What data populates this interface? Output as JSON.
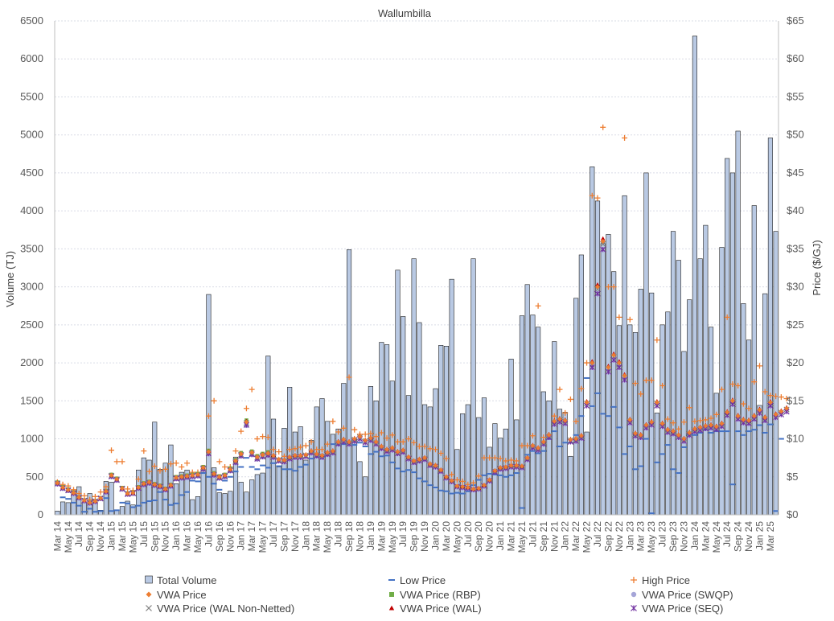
{
  "chart_data": {
    "type": "bar",
    "title": "Wallumbilla",
    "xlabel": "",
    "ylabel": "Volume (TJ)",
    "y2label": "Price ($/GJ)",
    "ylim": [
      0,
      6500
    ],
    "y2lim": [
      0,
      65
    ],
    "y_ticks": [
      "0",
      "500",
      "1000",
      "1500",
      "2000",
      "2500",
      "3000",
      "3500",
      "4000",
      "4500",
      "5000",
      "5500",
      "6000",
      "6500"
    ],
    "y2_ticks": [
      "$0",
      "$5",
      "$10",
      "$15",
      "$20",
      "$25",
      "$30",
      "$35",
      "$40",
      "$45",
      "$50",
      "$55",
      "$60",
      "$65"
    ],
    "grid": true,
    "legend_position": "bottom",
    "x_tick_labels": [
      "Mar 14",
      "May 14",
      "Jul 14",
      "Sep 14",
      "Nov 14",
      "Jan 15",
      "Mar 15",
      "May 15",
      "Jul 15",
      "Sep 15",
      "Nov 15",
      "Jan 16",
      "Mar 16",
      "May 16",
      "Jul 16",
      "Sep 16",
      "Nov 16",
      "Jan 17",
      "Mar 17",
      "May 17",
      "Jul 17",
      "Sep 17",
      "Nov 17",
      "Jan 18",
      "Mar 18",
      "May 18",
      "Jul 18",
      "Sep 18",
      "Nov 18",
      "Jan 19",
      "Mar 19",
      "May 19",
      "Jul 19",
      "Sep 19",
      "Nov 19",
      "Jan 20",
      "Mar 20",
      "May 20",
      "Jul 20",
      "Sep 20",
      "Nov 20",
      "Jan 21",
      "Mar 21",
      "May 21",
      "Jul 21",
      "Sep 21",
      "Nov 21",
      "Jan 22",
      "Mar 22",
      "May 22",
      "Jul 22",
      "Sep 22",
      "Nov 22",
      "Jan 23",
      "Mar 23",
      "May 23",
      "Jul 23",
      "Sep 23",
      "Nov 23",
      "Jan 24",
      "Mar 24",
      "May 24",
      "Jul 24",
      "Sep 24",
      "Nov 24",
      "Jan 25",
      "Mar 25"
    ],
    "x_start": "2014-03",
    "volume": [
      50,
      170,
      160,
      330,
      370,
      160,
      280,
      200,
      60,
      440,
      430,
      60,
      110,
      180,
      130,
      590,
      750,
      720,
      1220,
      600,
      680,
      920,
      410,
      560,
      590,
      200,
      240,
      560,
      2900,
      620,
      290,
      280,
      310,
      760,
      430,
      300,
      460,
      530,
      550,
      2090,
      1260,
      630,
      1140,
      1680,
      1090,
      1160,
      720,
      980,
      1420,
      1530,
      1230,
      1060,
      1130,
      1730,
      3490,
      1000,
      700,
      500,
      1690,
      1500,
      2270,
      2240,
      1760,
      3220,
      2610,
      1570,
      3370,
      2530,
      1450,
      1420,
      1660,
      2230,
      2220,
      3100,
      860,
      1330,
      1450,
      3370,
      1280,
      1540,
      890,
      1200,
      1010,
      1130,
      2050,
      1250,
      2620,
      3030,
      2630,
      2470,
      1620,
      1500,
      2280,
      1390,
      1350,
      770,
      2850,
      3420,
      1090,
      4580,
      4130,
      3570,
      3690,
      3200,
      2490,
      4200,
      2500,
      2400,
      2970,
      4500,
      2920,
      1340,
      2500,
      2670,
      3730,
      3350,
      2150,
      2830,
      6300,
      3370,
      3810,
      2470,
      1600,
      3520,
      4690,
      4500,
      5050,
      2780,
      2300,
      4070,
      1440,
      2910,
      4960,
      3730
    ],
    "series": [
      {
        "name": "Total Volume",
        "type": "bar",
        "color": "#b9c9e3"
      },
      {
        "name": "Low Price",
        "type": "dash",
        "color": "#4472c4"
      },
      {
        "name": "High Price",
        "type": "plus",
        "color": "#ed7d31"
      },
      {
        "name": "VWA Price",
        "type": "diamond",
        "color": "#ed7d31"
      },
      {
        "name": "VWA Price (RBP)",
        "type": "square",
        "color": "#70ad47"
      },
      {
        "name": "VWA Price (SWQP)",
        "type": "circle",
        "color": "#a5a5d8"
      },
      {
        "name": "VWA Price (WAL Non-Netted)",
        "type": "x",
        "color": "#7f7f7f"
      },
      {
        "name": "VWA Price (WAL)",
        "type": "triangle",
        "color": "#c00000"
      },
      {
        "name": "VWA Price (SEQ)",
        "type": "star",
        "color": "#7030a0"
      }
    ],
    "vwa_price": [
      4.2,
      3.6,
      3.3,
      2.9,
      2.3,
      1.9,
      1.6,
      1.8,
      2.2,
      3.1,
      5.2,
      4.7,
      3.5,
      2.8,
      2.9,
      3.6,
      4.1,
      4.3,
      4.0,
      3.8,
      3.4,
      3.9,
      4.9,
      5.0,
      5.1,
      5.2,
      5.3,
      6.2,
      8.3,
      5.4,
      5.0,
      5.2,
      6.0,
      7.1,
      8.0,
      12.2,
      8.2,
      7.6,
      7.9,
      8.1,
      7.8,
      7.3,
      7.2,
      7.6,
      7.8,
      7.8,
      7.9,
      8.4,
      8.0,
      7.8,
      8.2,
      8.4,
      9.6,
      9.9,
      9.6,
      10.0,
      10.3,
      9.8,
      10.1,
      9.6,
      9.0,
      8.6,
      8.8,
      8.3,
      8.5,
      7.6,
      7.1,
      7.3,
      7.5,
      6.7,
      6.5,
      5.9,
      5.0,
      4.5,
      3.8,
      3.7,
      3.6,
      3.4,
      3.5,
      3.9,
      4.6,
      5.8,
      6.2,
      6.3,
      6.5,
      6.5,
      6.4,
      7.5,
      9.1,
      8.8,
      9.6,
      10.5,
      12.3,
      12.6,
      12.4,
      9.9,
      10.0,
      10.4,
      14.8,
      20.0,
      30.0,
      36.0,
      19.4,
      21.0,
      20.0,
      18.3,
      12.5,
      10.7,
      10.5,
      11.8,
      12.2,
      14.8,
      12.0,
      11.2,
      11.0,
      10.5,
      10.0,
      10.8,
      11.3,
      11.5,
      11.7,
      11.8,
      11.6,
      12.0,
      13.5,
      15.0,
      13.0,
      12.5,
      12.4,
      13.0,
      13.8,
      12.8,
      14.8,
      13.2,
      13.6,
      14.0
    ],
    "high_price": [
      4.3,
      4.0,
      3.8,
      3.3,
      2.8,
      2.5,
      2.0,
      2.4,
      3.0,
      3.7,
      8.5,
      7.0,
      7.0,
      3.4,
      3.2,
      4.7,
      8.4,
      5.7,
      6.4,
      5.8,
      6.0,
      6.7,
      6.8,
      6.3,
      6.8,
      5.6,
      5.6,
      6.0,
      13.0,
      15.0,
      7.0,
      6.3,
      6.3,
      8.4,
      11.0,
      14.0,
      16.5,
      10.0,
      10.3,
      10.2,
      8.6,
      8.3,
      7.7,
      8.6,
      8.7,
      8.9,
      9.1,
      9.6,
      8.6,
      8.6,
      9.3,
      12.3,
      10.9,
      11.4,
      18.1,
      11.2,
      10.6,
      10.6,
      10.7,
      10.3,
      10.8,
      10.1,
      10.5,
      9.6,
      9.6,
      10.0,
      9.5,
      9.0,
      9.0,
      8.7,
      8.6,
      8.1,
      7.4,
      5.3,
      4.6,
      4.4,
      4.0,
      4.2,
      5.1,
      7.5,
      7.5,
      7.5,
      7.4,
      7.1,
      7.2,
      7.1,
      9.1,
      9.1,
      10.4,
      27.5,
      10.2,
      10.5,
      13.0,
      16.5,
      13.4,
      15.2,
      12.3,
      16.6,
      20.0,
      42.0,
      41.7,
      51.0,
      30.0,
      30.0,
      26.0,
      49.6,
      25.7,
      17.3,
      15.9,
      17.7,
      17.7,
      23.0,
      17.0,
      12.6,
      12.1,
      11.3,
      12.2,
      14.1,
      12.3,
      12.4,
      12.5,
      12.7,
      13.2,
      16.5,
      26.0,
      17.2,
      17.0,
      14.6,
      14.0,
      17.5,
      19.6,
      16.2,
      15.7,
      15.6,
      15.5,
      15.3
    ],
    "low_price": [
      4.1,
      2.3,
      2.1,
      1.6,
      1.2,
      0.4,
      0.8,
      0.4,
      0.5,
      2.2,
      0.5,
      0.6,
      1.6,
      1.5,
      1.0,
      1.2,
      1.6,
      1.8,
      1.9,
      3.0,
      2.0,
      1.3,
      1.5,
      2.6,
      3.0,
      4.5,
      4.4,
      5.5,
      5.0,
      4.1,
      3.3,
      4.5,
      5.0,
      5.7,
      6.3,
      7.5,
      6.3,
      6.0,
      6.5,
      6.2,
      6.8,
      6.4,
      6.0,
      6.0,
      5.8,
      6.3,
      6.6,
      7.4,
      7.6,
      7.6,
      7.8,
      9.3,
      9.2,
      9.3,
      9.6,
      9.2,
      9.5,
      9.0,
      8.0,
      8.3,
      7.7,
      7.8,
      6.9,
      6.1,
      5.7,
      5.9,
      5.6,
      4.8,
      4.4,
      3.9,
      3.6,
      3.2,
      3.1,
      2.8,
      2.9,
      2.8,
      3.1,
      3.9,
      4.6,
      5.2,
      5.4,
      5.3,
      5.2,
      5.0,
      5.2,
      5.5,
      0.9,
      7.9,
      8.4,
      8.1,
      8.4,
      10.0,
      11.0,
      9.0,
      9.5,
      9.5,
      10.5,
      13.0,
      18.0,
      14.3,
      16.0,
      13.3,
      13.0,
      14.2,
      11.5,
      8.0,
      9.0,
      6.0,
      6.4,
      10.0,
      0.2,
      6.9,
      8.0,
      9.2,
      6.0,
      5.5,
      8.9,
      10.5,
      10.5,
      10.8,
      11.2,
      10.8,
      11.0,
      11.0,
      11.0,
      4.0,
      11.0,
      10.5,
      11.0,
      11.2,
      11.8,
      10.8,
      11.9,
      0.5,
      10.0
    ]
  },
  "legend": {
    "items": [
      "Total Volume",
      "Low Price",
      "High Price",
      "VWA Price",
      "VWA Price (RBP)",
      "VWA Price (SWQP)",
      "VWA Price (WAL Non-Netted)",
      "VWA Price (WAL)",
      "VWA Price (SEQ)"
    ]
  }
}
